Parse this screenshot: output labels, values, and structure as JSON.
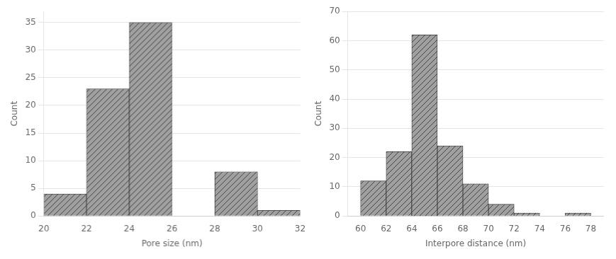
{
  "chart_data": [
    {
      "type": "histogram",
      "bins": [
        20,
        22,
        24,
        26,
        28,
        30,
        32
      ],
      "counts": [
        4,
        23,
        35,
        0,
        8,
        1
      ],
      "xlabel": "Pore size (nm)",
      "ylabel": "Count",
      "xlim": [
        20,
        32
      ],
      "xticks": [
        20,
        22,
        24,
        26,
        28,
        30,
        32
      ],
      "ylim": [
        0,
        37
      ],
      "yticks": [
        0,
        5,
        10,
        15,
        20,
        25,
        30,
        35
      ],
      "color": "#a0a0a0",
      "grid": true
    },
    {
      "type": "histogram",
      "bins": [
        60,
        62,
        64,
        66,
        68,
        70,
        72,
        74,
        76,
        78
      ],
      "counts": [
        12,
        22,
        62,
        24,
        11,
        4,
        1,
        0,
        1
      ],
      "xlabel": "Interpore distance (nm)",
      "ylabel": "Count",
      "xlim": [
        59,
        79
      ],
      "xticks": [
        60,
        62,
        64,
        66,
        68,
        70,
        72,
        74,
        76,
        78
      ],
      "ylim": [
        0,
        70
      ],
      "yticks": [
        0,
        10,
        20,
        30,
        40,
        50,
        60,
        70
      ],
      "color": "#a0a0a0",
      "grid": true
    }
  ]
}
